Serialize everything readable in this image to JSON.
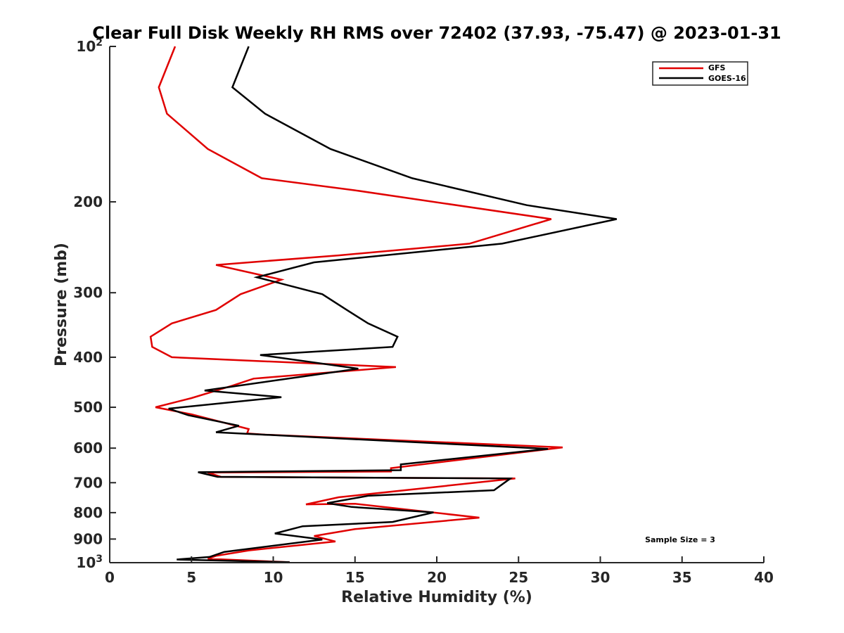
{
  "chart_data": {
    "type": "line",
    "title": "Clear Full Disk Weekly RH RMS over 72402 (37.93, -75.47) @ 2023-01-31",
    "xlabel": "Relative Humidity (%)",
    "ylabel": "Pressure (mb)",
    "xlim": [
      0,
      40
    ],
    "ylim": [
      100,
      1000
    ],
    "yscale": "log",
    "y_reversed": true,
    "x_ticks": [
      {
        "value": 0,
        "label": "0"
      },
      {
        "value": 5,
        "label": "5"
      },
      {
        "value": 10,
        "label": "10"
      },
      {
        "value": 15,
        "label": "15"
      },
      {
        "value": 20,
        "label": "20"
      },
      {
        "value": 25,
        "label": "25"
      },
      {
        "value": 30,
        "label": "30"
      },
      {
        "value": 35,
        "label": "35"
      },
      {
        "value": 40,
        "label": "40"
      }
    ],
    "y_ticks": [
      {
        "value": 100,
        "base": "10",
        "exp": "2"
      },
      {
        "value": 200,
        "label": "200"
      },
      {
        "value": 300,
        "label": "300"
      },
      {
        "value": 400,
        "label": "400"
      },
      {
        "value": 500,
        "label": "500"
      },
      {
        "value": 600,
        "label": "600"
      },
      {
        "value": 700,
        "label": "700"
      },
      {
        "value": 800,
        "label": "800"
      },
      {
        "value": 900,
        "label": "900"
      },
      {
        "value": 1000,
        "base": "10",
        "exp": "3"
      }
    ],
    "legend": {
      "position": "top-right"
    },
    "annotation": "Sample Size = 3",
    "grid": false,
    "series": [
      {
        "name": "GFS",
        "color": "#e00000",
        "points": [
          [
            4.0,
            100
          ],
          [
            3.0,
            120
          ],
          [
            3.5,
            135
          ],
          [
            6.0,
            158
          ],
          [
            9.3,
            180
          ],
          [
            15.0,
            190
          ],
          [
            27.0,
            216
          ],
          [
            22.0,
            241
          ],
          [
            14.0,
            254
          ],
          [
            6.5,
            265
          ],
          [
            10.5,
            283
          ],
          [
            8.0,
            302
          ],
          [
            6.5,
            324
          ],
          [
            3.8,
            344
          ],
          [
            2.5,
            365
          ],
          [
            2.6,
            382
          ],
          [
            3.8,
            400
          ],
          [
            17.5,
            418
          ],
          [
            8.8,
            440
          ],
          [
            7.5,
            454
          ],
          [
            5.0,
            480
          ],
          [
            2.8,
            500
          ],
          [
            5.0,
            516
          ],
          [
            8.5,
            551
          ],
          [
            8.4,
            562
          ],
          [
            9.5,
            565
          ],
          [
            27.7,
            598
          ],
          [
            17.2,
            656
          ],
          [
            17.2,
            666
          ],
          [
            6.0,
            669
          ],
          [
            6.8,
            682
          ],
          [
            24.8,
            687
          ],
          [
            14.0,
            747
          ],
          [
            12.0,
            771
          ],
          [
            15.0,
            769
          ],
          [
            22.6,
            818
          ],
          [
            15.0,
            861
          ],
          [
            12.5,
            888
          ],
          [
            13.8,
            910
          ],
          [
            8.5,
            947
          ],
          [
            6.5,
            970
          ],
          [
            6.0,
            983
          ],
          [
            11.0,
            998
          ]
        ]
      },
      {
        "name": "GOES-16",
        "color": "#000000",
        "points": [
          [
            8.5,
            100
          ],
          [
            7.5,
            120
          ],
          [
            9.5,
            135
          ],
          [
            13.5,
            158
          ],
          [
            18.5,
            180
          ],
          [
            25.5,
            203
          ],
          [
            31.0,
            216
          ],
          [
            24.0,
            241
          ],
          [
            12.5,
            262
          ],
          [
            9.0,
            280
          ],
          [
            13.0,
            302
          ],
          [
            14.5,
            324
          ],
          [
            15.8,
            344
          ],
          [
            17.6,
            365
          ],
          [
            17.3,
            382
          ],
          [
            9.2,
            396
          ],
          [
            15.2,
            421
          ],
          [
            5.8,
            464
          ],
          [
            10.5,
            478
          ],
          [
            3.6,
            503
          ],
          [
            4.8,
            518
          ],
          [
            7.9,
            543
          ],
          [
            6.5,
            559
          ],
          [
            26.8,
            602
          ],
          [
            17.8,
            645
          ],
          [
            17.8,
            662
          ],
          [
            5.4,
            668
          ],
          [
            6.6,
            682
          ],
          [
            24.5,
            687
          ],
          [
            23.5,
            724
          ],
          [
            15.8,
            742
          ],
          [
            13.3,
            767
          ],
          [
            14.8,
            780
          ],
          [
            19.8,
            799
          ],
          [
            17.3,
            834
          ],
          [
            11.8,
            850
          ],
          [
            10.1,
            878
          ],
          [
            13.0,
            902
          ],
          [
            7.0,
            953
          ],
          [
            6.1,
            975
          ],
          [
            4.1,
            986
          ],
          [
            11.0,
            998
          ]
        ]
      }
    ]
  }
}
